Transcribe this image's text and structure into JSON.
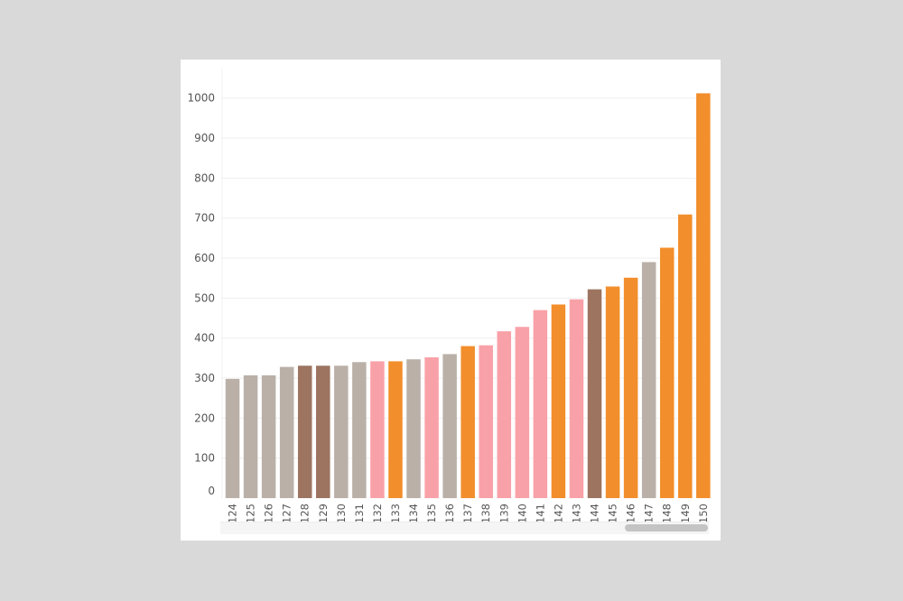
{
  "chart_data": {
    "type": "bar",
    "categories": [
      "124",
      "125",
      "126",
      "127",
      "128",
      "129",
      "130",
      "131",
      "132",
      "133",
      "134",
      "135",
      "136",
      "137",
      "138",
      "139",
      "140",
      "141",
      "142",
      "143",
      "144",
      "145",
      "146",
      "147",
      "148",
      "149",
      "150"
    ],
    "values": [
      298,
      307,
      307,
      328,
      331,
      331,
      331,
      340,
      342,
      342,
      347,
      352,
      360,
      380,
      382,
      417,
      428,
      470,
      484,
      497,
      522,
      529,
      551,
      590,
      626,
      709,
      1012
    ],
    "bar_colors": [
      "#bab0a8",
      "#bab0a8",
      "#bab0a8",
      "#bab0a8",
      "#9c7460",
      "#9c7460",
      "#bab0a8",
      "#bab0a8",
      "#f9a1a8",
      "#f28e2b",
      "#bab0a8",
      "#f9a1a8",
      "#bab0a8",
      "#f28e2b",
      "#f9a1a8",
      "#f9a1a8",
      "#f9a1a8",
      "#f9a1a8",
      "#f28e2b",
      "#f9a1a8",
      "#9c7460",
      "#f28e2b",
      "#f28e2b",
      "#bab0a8",
      "#f28e2b",
      "#f28e2b",
      "#f28e2b"
    ],
    "y_ticks": [
      "0",
      "100",
      "200",
      "300",
      "400",
      "500",
      "600",
      "700",
      "800",
      "900",
      "1000"
    ],
    "ylim": [
      0,
      1090
    ],
    "grid": true,
    "title": "",
    "xlabel": "",
    "ylabel": ""
  }
}
